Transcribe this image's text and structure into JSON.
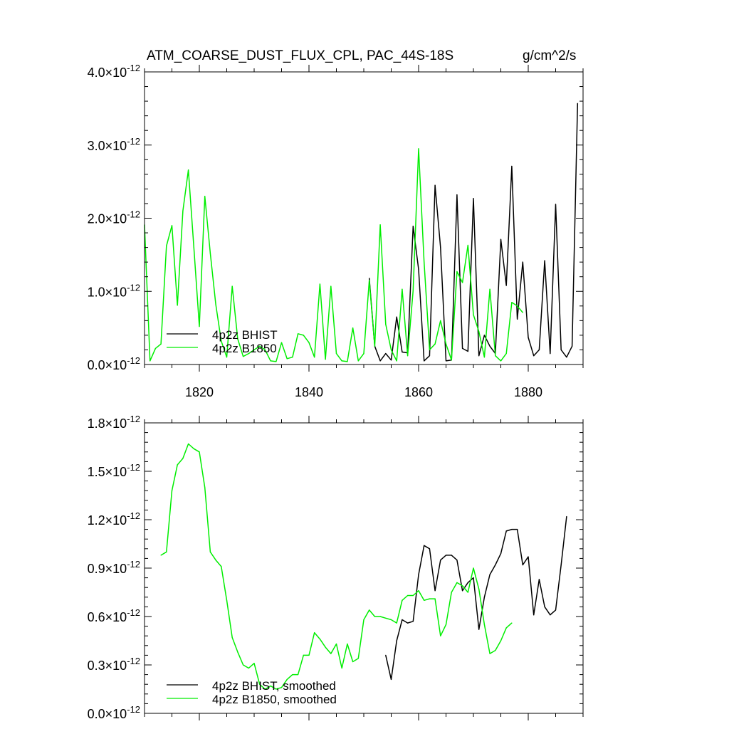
{
  "figure": {
    "title": "ATM_COARSE_DUST_FLUX_CPL, PAC_44S-18S",
    "units": "g/cm^2/s"
  },
  "colors": {
    "hist": "#000000",
    "b1850": "#00ee00",
    "axis": "#000000"
  },
  "chart_data": [
    {
      "type": "line",
      "title": "ATM_COARSE_DUST_FLUX_CPL, PAC_44S-18S",
      "units": "g/cm^2/s",
      "xlim": [
        1810,
        1890
      ],
      "ylim": [
        0,
        4
      ],
      "x_ticks": [
        1820,
        1840,
        1860,
        1880
      ],
      "y_ticks": [
        0,
        1,
        2,
        3,
        4
      ],
      "y_tick_labels": [
        {
          "mantissa": "0.0",
          "times": "×",
          "base": "10",
          "exp": "-12"
        },
        {
          "mantissa": "1.0",
          "times": "×",
          "base": "10",
          "exp": "-12"
        },
        {
          "mantissa": "2.0",
          "times": "×",
          "base": "10",
          "exp": "-12"
        },
        {
          "mantissa": "3.0",
          "times": "×",
          "base": "10",
          "exp": "-12"
        },
        {
          "mantissa": "4.0",
          "times": "×",
          "base": "10",
          "exp": "-12"
        }
      ],
      "y_scale_factor": 1e-12,
      "legend_position": "bottom-left",
      "series": [
        {
          "name": "4p2z BHIST",
          "color": "#000000",
          "x": [
            1851,
            1852,
            1853,
            1854,
            1855,
            1856,
            1857,
            1858,
            1859,
            1860,
            1861,
            1862,
            1863,
            1864,
            1865,
            1866,
            1867,
            1868,
            1869,
            1870,
            1871,
            1872,
            1873,
            1874,
            1875,
            1876,
            1877,
            1878,
            1879,
            1880,
            1881,
            1882,
            1883,
            1884,
            1885,
            1886,
            1887,
            1888,
            1889
          ],
          "y": [
            1.18,
            0.25,
            0.05,
            0.15,
            0.06,
            0.65,
            0.17,
            0.16,
            1.89,
            1.3,
            0.05,
            0.12,
            2.45,
            1.6,
            0.05,
            0.06,
            2.32,
            0.22,
            0.18,
            2.27,
            0.12,
            0.4,
            0.25,
            0.15,
            1.71,
            1.08,
            2.71,
            0.62,
            1.4,
            0.37,
            0.12,
            0.2,
            1.42,
            0.15,
            2.19,
            0.2,
            0.1,
            0.25,
            3.57
          ]
        },
        {
          "name": "4p2z B1850",
          "color": "#00ee00",
          "x": [
            1810,
            1811,
            1812,
            1813,
            1814,
            1815,
            1816,
            1817,
            1818,
            1819,
            1820,
            1821,
            1822,
            1823,
            1824,
            1825,
            1826,
            1827,
            1828,
            1829,
            1830,
            1831,
            1832,
            1833,
            1834,
            1835,
            1836,
            1837,
            1838,
            1839,
            1840,
            1841,
            1842,
            1843,
            1844,
            1845,
            1846,
            1847,
            1848,
            1849,
            1850,
            1851,
            1852,
            1853,
            1854,
            1855,
            1856,
            1857,
            1858,
            1859,
            1860,
            1861,
            1862,
            1863,
            1864,
            1865,
            1866,
            1867,
            1868,
            1869,
            1870,
            1871,
            1872,
            1873,
            1874,
            1875,
            1876,
            1877,
            1878,
            1879
          ],
          "y": [
            1.91,
            0.05,
            0.22,
            0.28,
            1.62,
            1.9,
            0.81,
            2.1,
            2.66,
            1.6,
            0.52,
            2.3,
            1.52,
            0.82,
            0.32,
            0.1,
            1.07,
            0.35,
            0.11,
            0.15,
            0.2,
            0.25,
            0.2,
            0.05,
            0.04,
            0.3,
            0.08,
            0.1,
            0.42,
            0.4,
            0.3,
            0.1,
            1.1,
            0.07,
            1.07,
            0.15,
            0.05,
            0.04,
            0.5,
            0.05,
            0.15,
            1.15,
            0.25,
            1.91,
            0.55,
            0.2,
            0.05,
            1.03,
            0.12,
            1.01,
            2.95,
            1.4,
            0.2,
            0.28,
            0.6,
            0.28,
            0.06,
            1.27,
            1.12,
            1.63,
            0.68,
            0.45,
            0.1,
            1.03,
            0.12,
            0.05,
            0.15,
            0.85,
            0.8,
            0.71
          ]
        }
      ]
    },
    {
      "type": "line",
      "title": "",
      "xlim": [
        1810,
        1890
      ],
      "ylim": [
        0,
        1.8
      ],
      "x_ticks": [
        1820,
        1840,
        1860,
        1880
      ],
      "y_ticks": [
        0,
        0.3,
        0.6,
        0.9,
        1.2,
        1.5,
        1.8
      ],
      "y_tick_labels": [
        {
          "mantissa": "0.0",
          "times": "×",
          "base": "10",
          "exp": "-12"
        },
        {
          "mantissa": "0.3",
          "times": "×",
          "base": "10",
          "exp": "-12"
        },
        {
          "mantissa": "0.6",
          "times": "×",
          "base": "10",
          "exp": "-12"
        },
        {
          "mantissa": "0.9",
          "times": "×",
          "base": "10",
          "exp": "-12"
        },
        {
          "mantissa": "1.2",
          "times": "×",
          "base": "10",
          "exp": "-12"
        },
        {
          "mantissa": "1.5",
          "times": "×",
          "base": "10",
          "exp": "-12"
        },
        {
          "mantissa": "1.8",
          "times": "×",
          "base": "10",
          "exp": "-12"
        }
      ],
      "y_scale_factor": 1e-12,
      "legend_position": "bottom-left",
      "series": [
        {
          "name": "4p2z BHIST, smoothed",
          "color": "#000000",
          "x": [
            1854,
            1855,
            1856,
            1857,
            1858,
            1859,
            1860,
            1861,
            1862,
            1863,
            1864,
            1865,
            1866,
            1867,
            1868,
            1869,
            1870,
            1871,
            1872,
            1873,
            1874,
            1875,
            1876,
            1877,
            1878,
            1879,
            1880,
            1881,
            1882,
            1883,
            1884,
            1885,
            1886,
            1887
          ],
          "y": [
            0.36,
            0.21,
            0.45,
            0.58,
            0.56,
            0.57,
            0.86,
            1.04,
            1.02,
            0.76,
            0.95,
            0.98,
            0.98,
            0.95,
            0.76,
            0.81,
            0.84,
            0.52,
            0.72,
            0.86,
            0.92,
            0.99,
            1.13,
            1.14,
            1.14,
            0.92,
            0.97,
            0.61,
            0.83,
            0.66,
            0.61,
            0.64,
            0.92,
            1.22
          ]
        },
        {
          "name": "4p2z B1850, smoothed",
          "color": "#00ee00",
          "x": [
            1813,
            1814,
            1815,
            1816,
            1817,
            1818,
            1819,
            1820,
            1821,
            1822,
            1823,
            1824,
            1825,
            1826,
            1827,
            1828,
            1829,
            1830,
            1831,
            1832,
            1833,
            1834,
            1835,
            1836,
            1837,
            1838,
            1839,
            1840,
            1841,
            1842,
            1843,
            1844,
            1845,
            1846,
            1847,
            1848,
            1849,
            1850,
            1851,
            1852,
            1853,
            1854,
            1855,
            1856,
            1857,
            1858,
            1859,
            1860,
            1861,
            1862,
            1863,
            1864,
            1865,
            1866,
            1867,
            1868,
            1869,
            1870,
            1871,
            1872,
            1873,
            1874,
            1875,
            1876,
            1877
          ],
          "y": [
            0.98,
            1.0,
            1.38,
            1.54,
            1.58,
            1.67,
            1.64,
            1.62,
            1.4,
            1.0,
            0.95,
            0.91,
            0.7,
            0.47,
            0.38,
            0.3,
            0.28,
            0.31,
            0.18,
            0.15,
            0.17,
            0.15,
            0.16,
            0.21,
            0.24,
            0.24,
            0.36,
            0.36,
            0.5,
            0.46,
            0.41,
            0.37,
            0.43,
            0.28,
            0.43,
            0.32,
            0.34,
            0.58,
            0.64,
            0.6,
            0.6,
            0.59,
            0.58,
            0.56,
            0.7,
            0.73,
            0.73,
            0.76,
            0.7,
            0.71,
            0.71,
            0.48,
            0.55,
            0.75,
            0.81,
            0.79,
            0.75,
            0.9,
            0.77,
            0.55,
            0.37,
            0.39,
            0.45,
            0.53,
            0.56
          ]
        }
      ]
    }
  ]
}
